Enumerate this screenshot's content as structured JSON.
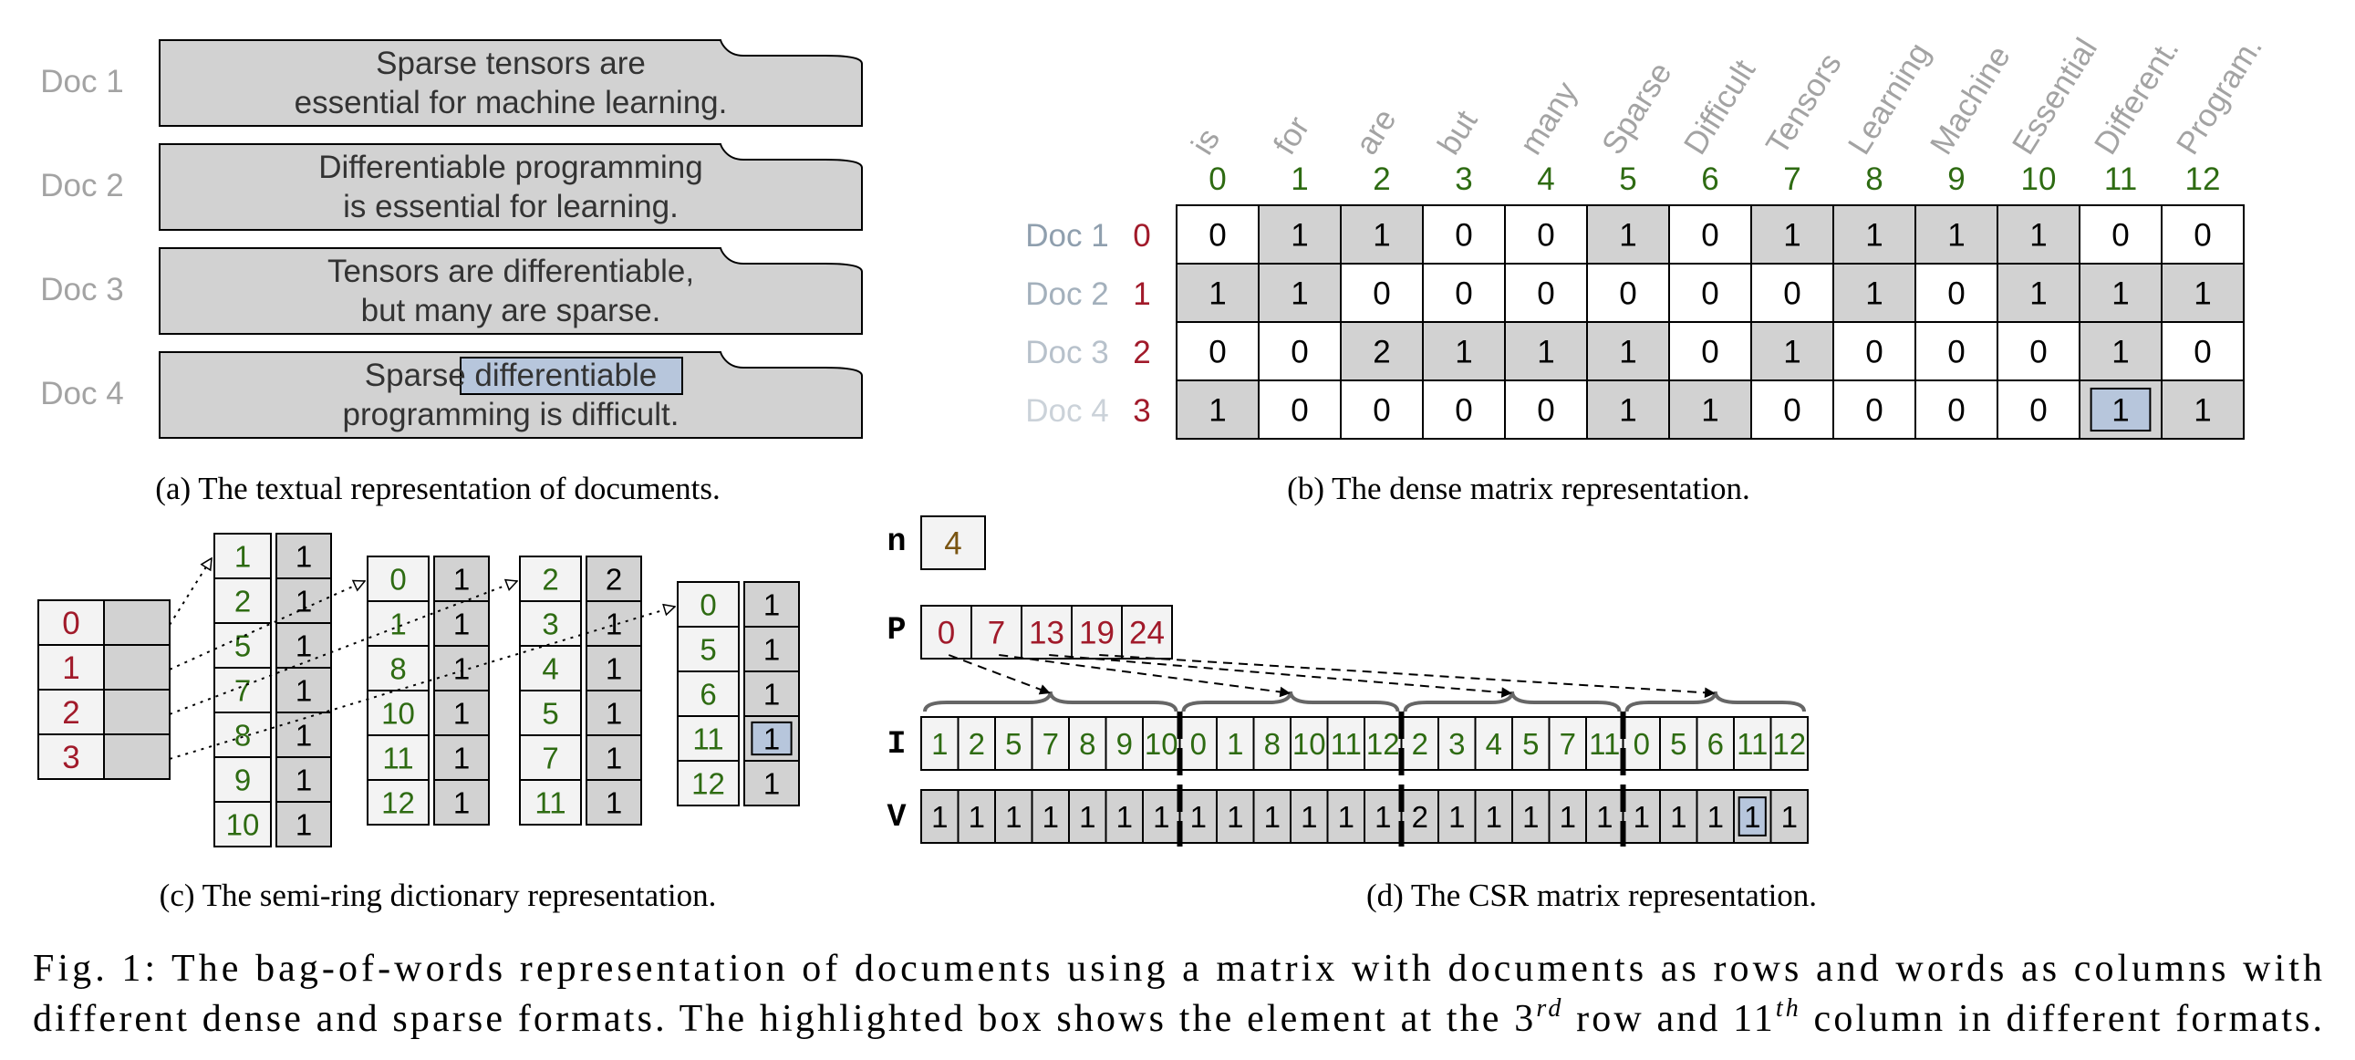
{
  "colors": {
    "gray_fill": "#d2d2d2",
    "light_fill": "#f3f3f3",
    "white_fill": "#ffffff",
    "highlight_fill": "#b7c6dc",
    "index_red": "#a11a2a",
    "word_green": "#2e6b12",
    "doc_gray": "#a3a3a3",
    "rowlabel_gray": "#8f9fae",
    "n_brown": "#7a5512",
    "border": "#000000",
    "brace": "#666666"
  },
  "panel_a": {
    "docs": [
      {
        "label": "Doc 1",
        "lines": [
          "Sparse tensors are",
          "essential for machine learning."
        ]
      },
      {
        "label": "Doc 2",
        "lines": [
          "Differentiable programming",
          "is essential for learning."
        ]
      },
      {
        "label": "Doc 3",
        "lines": [
          "Tensors are differentiable,",
          "but many are sparse."
        ]
      },
      {
        "label": "Doc 4",
        "lines": [
          "Sparse differentiable",
          "programming is difficult."
        ]
      }
    ],
    "caption": "(a) The textual representation of documents."
  },
  "panel_b": {
    "words": [
      "is",
      "for",
      "are",
      "but",
      "many",
      "Sparse",
      "Difficult",
      "Tensors",
      "Learning",
      "Machine",
      "Essential",
      "Different.",
      "Program."
    ],
    "col_indices": [
      "0",
      "1",
      "2",
      "3",
      "4",
      "5",
      "6",
      "7",
      "8",
      "9",
      "10",
      "11",
      "12"
    ],
    "row_labels": [
      "Doc 1",
      "Doc 2",
      "Doc 3",
      "Doc 4"
    ],
    "row_indices": [
      "0",
      "1",
      "2",
      "3"
    ],
    "matrix": [
      [
        "0",
        "1",
        "1",
        "0",
        "0",
        "1",
        "0",
        "1",
        "1",
        "1",
        "1",
        "0",
        "0"
      ],
      [
        "1",
        "1",
        "0",
        "0",
        "0",
        "0",
        "0",
        "0",
        "1",
        "0",
        "1",
        "1",
        "1"
      ],
      [
        "0",
        "0",
        "2",
        "1",
        "1",
        "1",
        "0",
        "1",
        "0",
        "0",
        "0",
        "1",
        "0"
      ],
      [
        "1",
        "0",
        "0",
        "0",
        "0",
        "1",
        "1",
        "0",
        "0",
        "0",
        "0",
        "1",
        "1"
      ]
    ],
    "highlight": {
      "row": 3,
      "col": 11
    },
    "caption": "(b) The dense matrix representation."
  },
  "panel_c": {
    "row_indices": [
      "0",
      "1",
      "2",
      "3"
    ],
    "dicts": [
      {
        "keys": [
          "1",
          "2",
          "5",
          "7",
          "8",
          "9",
          "10"
        ],
        "values": [
          "1",
          "1",
          "1",
          "1",
          "1",
          "1",
          "1"
        ]
      },
      {
        "keys": [
          "0",
          "1",
          "8",
          "10",
          "11",
          "12"
        ],
        "values": [
          "1",
          "1",
          "1",
          "1",
          "1",
          "1"
        ]
      },
      {
        "keys": [
          "2",
          "3",
          "4",
          "5",
          "7",
          "11"
        ],
        "values": [
          "2",
          "1",
          "1",
          "1",
          "1",
          "1"
        ]
      },
      {
        "keys": [
          "0",
          "5",
          "6",
          "11",
          "12"
        ],
        "values": [
          "1",
          "1",
          "1",
          "1",
          "1"
        ]
      }
    ],
    "highlight": {
      "dict": 3,
      "entry": 3
    },
    "caption": "(c) The semi-ring dictionary representation."
  },
  "panel_d": {
    "n_label": "n",
    "n_value": "4",
    "p_label": "P",
    "P": [
      "0",
      "7",
      "13",
      "19",
      "24"
    ],
    "i_label": "I",
    "I": [
      "1",
      "2",
      "5",
      "7",
      "8",
      "9",
      "10",
      "0",
      "1",
      "8",
      "10",
      "11",
      "12",
      "2",
      "3",
      "4",
      "5",
      "7",
      "11",
      "0",
      "5",
      "6",
      "11",
      "12"
    ],
    "v_label": "V",
    "V": [
      "1",
      "1",
      "1",
      "1",
      "1",
      "1",
      "1",
      "1",
      "1",
      "1",
      "1",
      "1",
      "1",
      "2",
      "1",
      "1",
      "1",
      "1",
      "1",
      "1",
      "1",
      "1",
      "1",
      "1"
    ],
    "highlight_index": 22,
    "caption": "(d) The CSR matrix representation."
  },
  "figure_caption": {
    "line1": "Fig. 1: The bag-of-words representation of documents using a matrix with documents as rows and words as columns with",
    "line2_pre": "different dense and sparse formats. The highlighted box shows the element at the 3",
    "sup1": "rd",
    "line2_mid": " row and 11",
    "sup2": "th",
    "line2_post": " column in different formats."
  }
}
